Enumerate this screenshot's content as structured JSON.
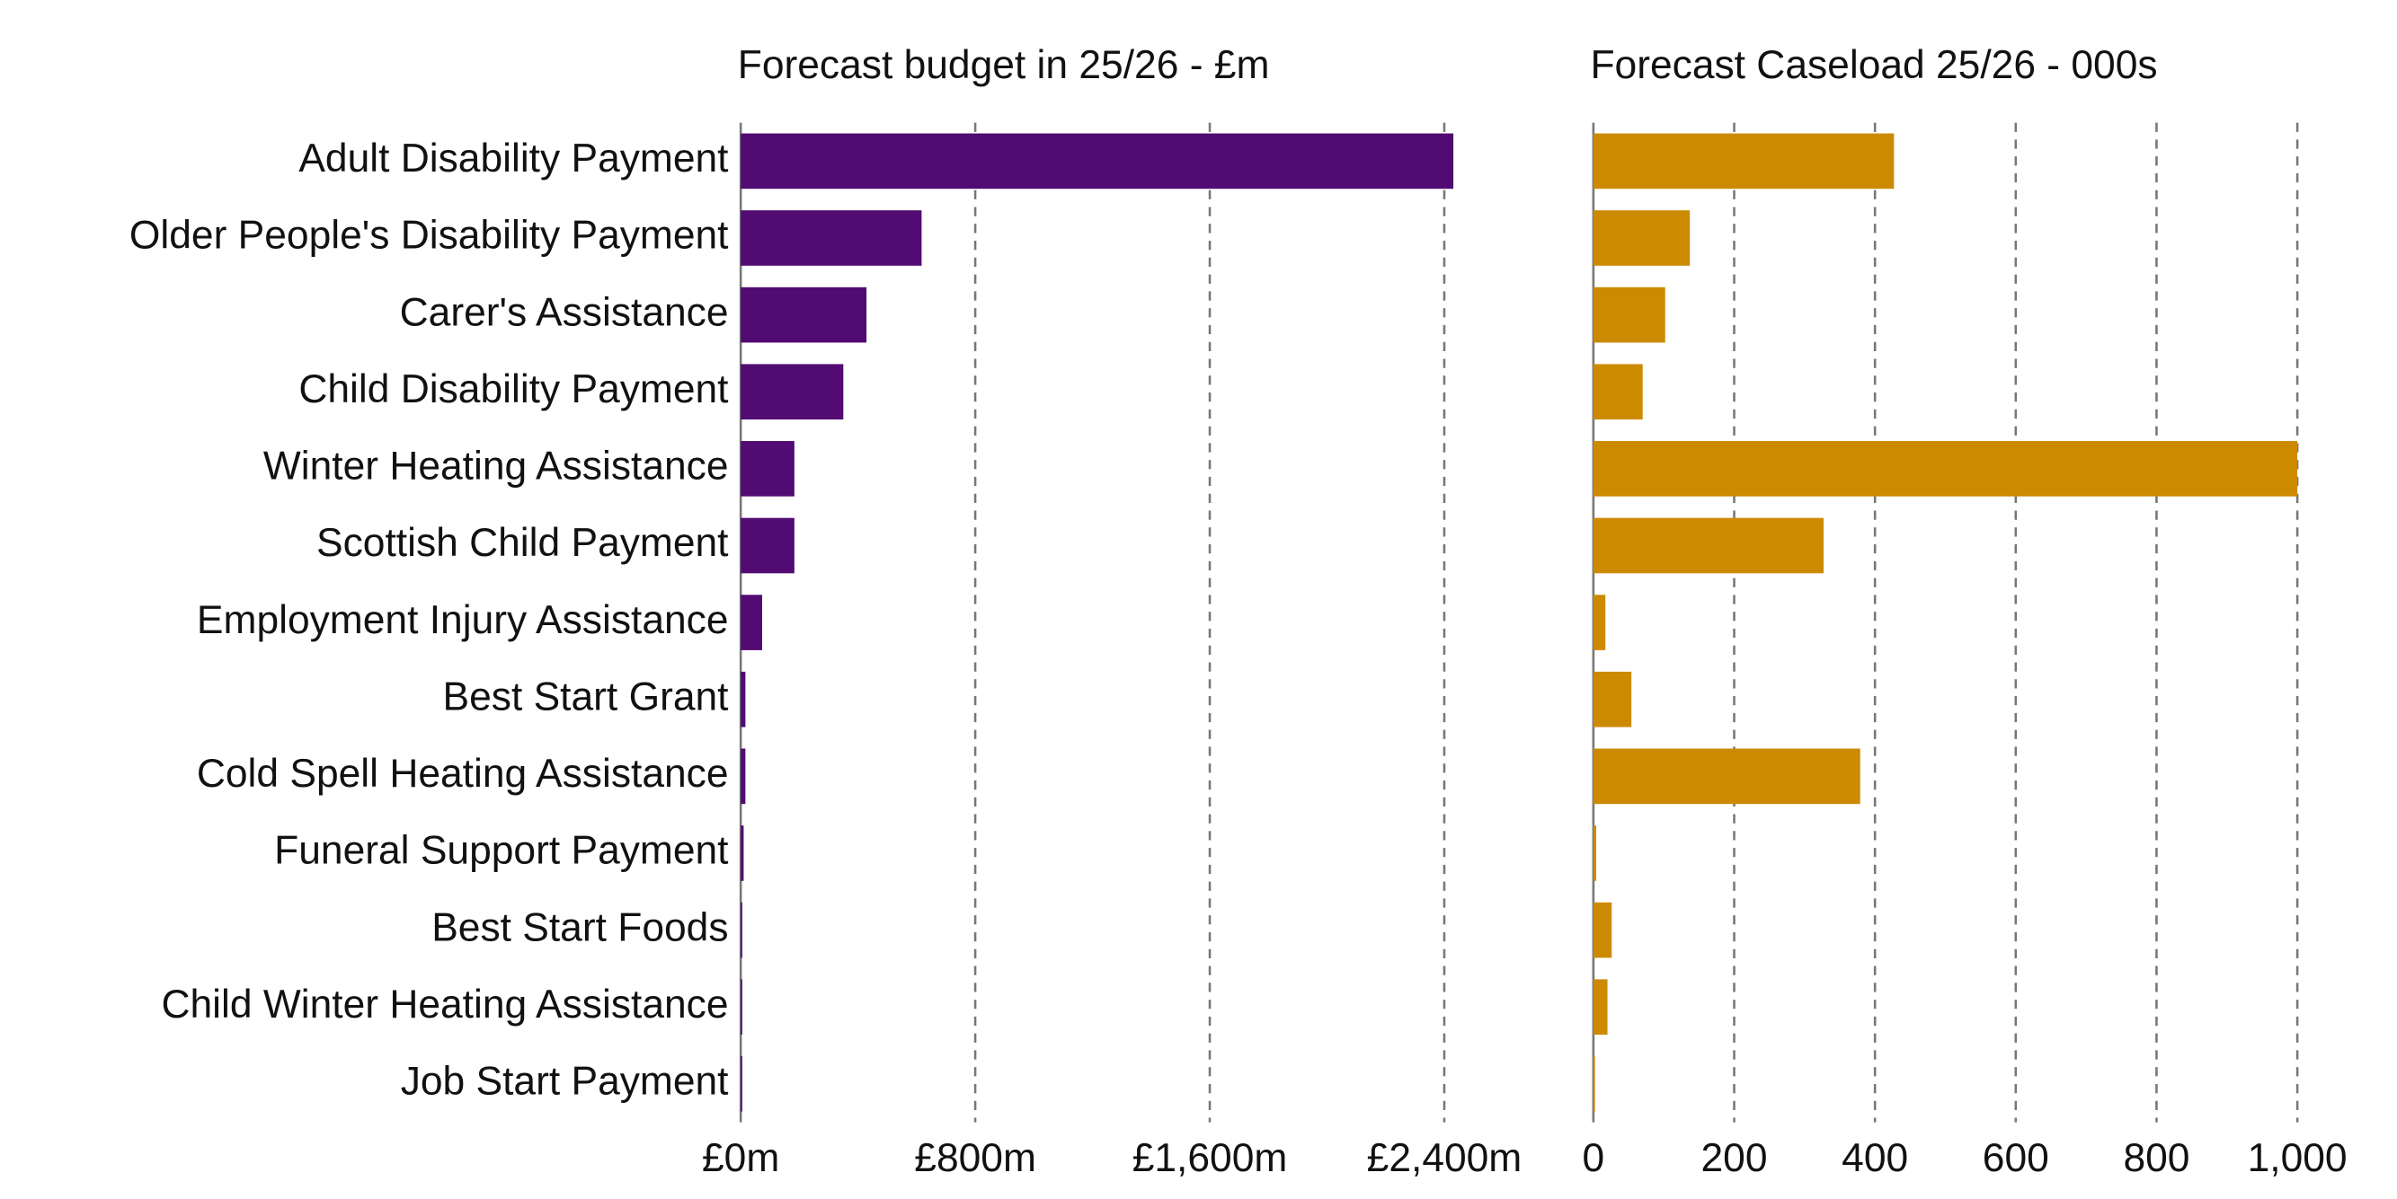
{
  "chart_data": [
    {
      "type": "bar",
      "orientation": "horizontal",
      "title": "Forecast budget in 25/26 - £m",
      "categories": [
        "Adult Disability Payment",
        "Older People's Disability Payment",
        "Carer's Assistance",
        "Child Disability Payment",
        "Winter Heating Assistance",
        "Scottish Child Payment",
        "Employment Injury Assistance",
        "Best Start Grant",
        "Cold Spell Heating Assistance",
        "Funeral Support Payment",
        "Best Start Foods",
        "Child Winter Heating Assistance",
        "Job Start Payment"
      ],
      "values": [
        2431,
        617,
        429,
        350,
        183,
        183,
        73,
        16,
        16,
        10,
        5,
        2,
        1
      ],
      "color": "#510b72",
      "xlim": [
        0,
        2600
      ],
      "xticks": [
        {
          "value": 0,
          "label": "£0m"
        },
        {
          "value": 800,
          "label": "£800m"
        },
        {
          "value": 1600,
          "label": "£1,600m"
        },
        {
          "value": 2400,
          "label": "£2,400m"
        }
      ],
      "grid": true
    },
    {
      "type": "bar",
      "orientation": "horizontal",
      "title": "Forecast Caseload 25/26 - 000s",
      "values": [
        427,
        137,
        102,
        70,
        1000,
        327,
        17,
        54,
        379,
        4,
        26,
        20,
        1
      ],
      "color": "#cc8a00",
      "xlim": [
        0,
        1000
      ],
      "xticks": [
        0,
        200,
        400,
        600,
        800,
        {
          "value": 1000,
          "label": "1,000"
        }
      ],
      "grid": true
    }
  ]
}
